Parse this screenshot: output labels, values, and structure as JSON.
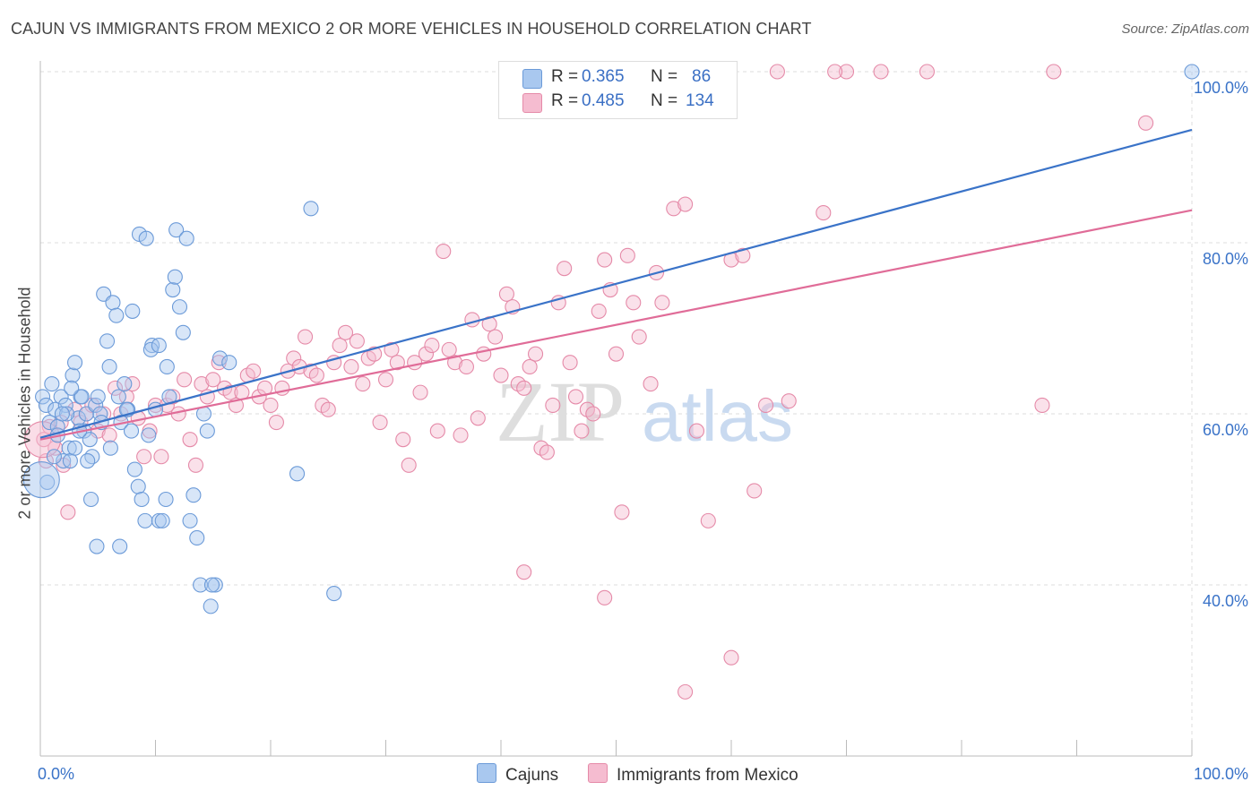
{
  "title": "CAJUN VS IMMIGRANTS FROM MEXICO 2 OR MORE VEHICLES IN HOUSEHOLD CORRELATION CHART",
  "source": "Source: ZipAtlas.com",
  "watermark": {
    "zip": "ZIP",
    "atlas": "atlas"
  },
  "legend": {
    "r_label": "R =",
    "n_label": "N =",
    "items": [
      {
        "r": "0.365",
        "n": "86"
      },
      {
        "r": "0.485",
        "n": "134"
      }
    ]
  },
  "colors": {
    "blue_fill": "#a9c8ef",
    "blue_stroke": "#6b9ad8",
    "blue_line": "#3a73c8",
    "pink_fill": "#f5bcd0",
    "pink_stroke": "#e58aa8",
    "pink_line": "#e06c98",
    "tick_text": "#3a73c8",
    "grid": "#dcdcdc"
  },
  "chart_data": {
    "type": "scatter",
    "xlabel": "",
    "ylabel": "2 or more Vehicles in Household",
    "xlim": [
      0,
      100
    ],
    "ylim": [
      20,
      100
    ],
    "x_tick_labels": [
      {
        "value": 0,
        "label": "0.0%"
      },
      {
        "value": 100,
        "label": "100.0%"
      }
    ],
    "x_minor_ticks": [
      10,
      20,
      30,
      40,
      50,
      60,
      70,
      80,
      90
    ],
    "y_ticks": [
      {
        "value": 100,
        "label": "100.0%"
      },
      {
        "value": 80,
        "label": "80.0%"
      },
      {
        "value": 60,
        "label": "60.0%"
      },
      {
        "value": 40,
        "label": "40.0%"
      }
    ],
    "grid": true,
    "legend_position": "top-center",
    "series": [
      {
        "name": "Cajuns",
        "color": "#a9c8ef",
        "trend": {
          "x": [
            0,
            100
          ],
          "y": [
            57.2,
            93.2
          ]
        },
        "points": [
          [
            0.2,
            62
          ],
          [
            0.5,
            61
          ],
          [
            0.8,
            59
          ],
          [
            1,
            63.5
          ],
          [
            1.3,
            60.5
          ],
          [
            1.5,
            58.5
          ],
          [
            1.8,
            62
          ],
          [
            2.2,
            61
          ],
          [
            2.5,
            56
          ],
          [
            2.8,
            64.5
          ],
          [
            3,
            66
          ],
          [
            3.3,
            59.5
          ],
          [
            3.5,
            62
          ],
          [
            3.8,
            58
          ],
          [
            4,
            60
          ],
          [
            4.3,
            57
          ],
          [
            4.5,
            55
          ],
          [
            4.8,
            61
          ],
          [
            5,
            62
          ],
          [
            5.2,
            60
          ],
          [
            5.5,
            74
          ],
          [
            5.8,
            68.5
          ],
          [
            6,
            65.5
          ],
          [
            6.3,
            73
          ],
          [
            6.6,
            71.5
          ],
          [
            6.8,
            62
          ],
          [
            7,
            59
          ],
          [
            7.3,
            63.5
          ],
          [
            7.6,
            60.5
          ],
          [
            7.9,
            58
          ],
          [
            8.2,
            53.5
          ],
          [
            8.5,
            51.5
          ],
          [
            8.8,
            50
          ],
          [
            9.1,
            47.5
          ],
          [
            9.4,
            57.5
          ],
          [
            9.7,
            68
          ],
          [
            10,
            60.5
          ],
          [
            10.3,
            47.5
          ],
          [
            10.6,
            47.5
          ],
          [
            10.9,
            50
          ],
          [
            11.2,
            62
          ],
          [
            11.5,
            74.5
          ],
          [
            11.8,
            81.5
          ],
          [
            12.1,
            72.5
          ],
          [
            12.4,
            69.5
          ],
          [
            12.7,
            80.5
          ],
          [
            13,
            47.5
          ],
          [
            13.3,
            50.5
          ],
          [
            13.6,
            45.5
          ],
          [
            13.9,
            40
          ],
          [
            14.2,
            60
          ],
          [
            14.5,
            58
          ],
          [
            14.8,
            37.5
          ],
          [
            15.2,
            40
          ],
          [
            1.5,
            57.5
          ],
          [
            2,
            54.5
          ],
          [
            2.3,
            60
          ],
          [
            2.6,
            54.5
          ],
          [
            3,
            56
          ],
          [
            3.6,
            62
          ],
          [
            4.1,
            54.5
          ],
          [
            4.4,
            50
          ],
          [
            4.9,
            44.5
          ],
          [
            6.9,
            44.5
          ],
          [
            7.5,
            60.5
          ],
          [
            8,
            72
          ],
          [
            8.6,
            81
          ],
          [
            9.2,
            80.5
          ],
          [
            9.6,
            67.5
          ],
          [
            10.3,
            68
          ],
          [
            11,
            65.5
          ],
          [
            11.7,
            76
          ],
          [
            14.9,
            40
          ],
          [
            15.6,
            66.5
          ],
          [
            16.4,
            66
          ],
          [
            22.3,
            53
          ],
          [
            23.5,
            84
          ],
          [
            25.5,
            39
          ],
          [
            0.6,
            52
          ],
          [
            100,
            100
          ],
          [
            1.2,
            55
          ],
          [
            1.9,
            60
          ],
          [
            2.7,
            63
          ],
          [
            3.4,
            58
          ],
          [
            5.3,
            59
          ],
          [
            6.1,
            56
          ]
        ],
        "big_points": [
          [
            0.1,
            52.3
          ]
        ]
      },
      {
        "name": "Immigrants from Mexico",
        "color": "#f5bcd0",
        "trend": {
          "x": [
            0,
            100
          ],
          "y": [
            57.0,
            83.8
          ]
        },
        "points": [
          [
            0.3,
            57
          ],
          [
            0.8,
            58.5
          ],
          [
            1.3,
            56
          ],
          [
            2,
            54
          ],
          [
            2.4,
            48.5
          ],
          [
            3,
            60.5
          ],
          [
            3.5,
            59
          ],
          [
            4,
            60
          ],
          [
            4.5,
            61
          ],
          [
            5,
            58
          ],
          [
            5.5,
            60
          ],
          [
            6,
            57.5
          ],
          [
            6.5,
            63
          ],
          [
            7,
            60
          ],
          [
            7.5,
            62
          ],
          [
            8,
            63.5
          ],
          [
            8.5,
            59.5
          ],
          [
            9,
            55
          ],
          [
            9.5,
            58
          ],
          [
            10,
            61
          ],
          [
            10.5,
            55
          ],
          [
            11,
            61
          ],
          [
            11.5,
            62
          ],
          [
            12,
            60
          ],
          [
            12.5,
            64
          ],
          [
            13,
            57
          ],
          [
            13.5,
            54
          ],
          [
            14,
            63.5
          ],
          [
            14.5,
            62
          ],
          [
            15,
            64
          ],
          [
            15.5,
            66
          ],
          [
            16,
            63
          ],
          [
            16.5,
            62.5
          ],
          [
            17,
            61
          ],
          [
            17.5,
            62.5
          ],
          [
            18,
            64.5
          ],
          [
            18.5,
            65
          ],
          [
            19,
            62
          ],
          [
            19.5,
            63
          ],
          [
            20,
            61
          ],
          [
            20.5,
            59
          ],
          [
            21,
            63
          ],
          [
            21.5,
            65
          ],
          [
            22,
            66.5
          ],
          [
            22.5,
            65.5
          ],
          [
            23,
            69
          ],
          [
            23.5,
            65
          ],
          [
            24,
            64.5
          ],
          [
            24.5,
            61
          ],
          [
            25,
            60.5
          ],
          [
            25.5,
            66
          ],
          [
            26,
            68
          ],
          [
            26.5,
            69.5
          ],
          [
            27,
            65.5
          ],
          [
            27.5,
            68.5
          ],
          [
            28,
            63.5
          ],
          [
            28.5,
            66.5
          ],
          [
            29,
            67
          ],
          [
            29.5,
            59
          ],
          [
            30,
            64
          ],
          [
            30.5,
            67.5
          ],
          [
            31,
            66
          ],
          [
            31.5,
            57
          ],
          [
            32,
            54
          ],
          [
            32.5,
            66
          ],
          [
            33,
            62.5
          ],
          [
            33.5,
            67
          ],
          [
            34,
            68
          ],
          [
            34.5,
            58
          ],
          [
            35,
            79
          ],
          [
            35.5,
            67.5
          ],
          [
            36,
            66
          ],
          [
            36.5,
            57.5
          ],
          [
            37,
            65.5
          ],
          [
            37.5,
            71
          ],
          [
            38,
            59.5
          ],
          [
            38.5,
            67
          ],
          [
            39,
            70.5
          ],
          [
            39.5,
            69
          ],
          [
            40,
            64.5
          ],
          [
            40.5,
            74
          ],
          [
            41,
            72.5
          ],
          [
            41.5,
            63.5
          ],
          [
            42,
            63
          ],
          [
            42.5,
            65.5
          ],
          [
            43,
            67
          ],
          [
            43.5,
            56
          ],
          [
            44,
            55.5
          ],
          [
            44.5,
            61
          ],
          [
            45,
            73
          ],
          [
            45.5,
            77
          ],
          [
            46,
            66
          ],
          [
            46.5,
            62
          ],
          [
            47,
            58
          ],
          [
            47.5,
            60.5
          ],
          [
            48,
            60
          ],
          [
            48.5,
            72
          ],
          [
            49,
            78
          ],
          [
            49.5,
            74.5
          ],
          [
            50,
            67
          ],
          [
            50.5,
            48.5
          ],
          [
            51,
            78.5
          ],
          [
            51.5,
            73
          ],
          [
            52,
            69
          ],
          [
            53,
            63.5
          ],
          [
            53.5,
            76.5
          ],
          [
            54,
            73
          ],
          [
            55,
            84
          ],
          [
            56,
            84.5
          ],
          [
            57,
            58
          ],
          [
            58,
            47.5
          ],
          [
            59,
            97
          ],
          [
            60,
            78
          ],
          [
            61,
            78.5
          ],
          [
            62,
            51
          ],
          [
            63,
            61
          ],
          [
            65,
            61.5
          ],
          [
            68,
            83.5
          ],
          [
            70,
            100
          ],
          [
            73,
            100
          ],
          [
            77,
            100
          ],
          [
            88,
            100
          ],
          [
            96,
            94
          ],
          [
            87,
            61
          ],
          [
            55,
            100
          ],
          [
            56,
            100
          ],
          [
            64,
            100
          ],
          [
            69,
            100
          ],
          [
            42,
            41.5
          ],
          [
            49,
            38.5
          ],
          [
            56,
            27.5
          ],
          [
            60,
            31.5
          ],
          [
            0.5,
            54.5
          ],
          [
            1.8,
            59
          ]
        ],
        "big_points": [
          [
            0.2,
            57
          ]
        ]
      }
    ]
  }
}
